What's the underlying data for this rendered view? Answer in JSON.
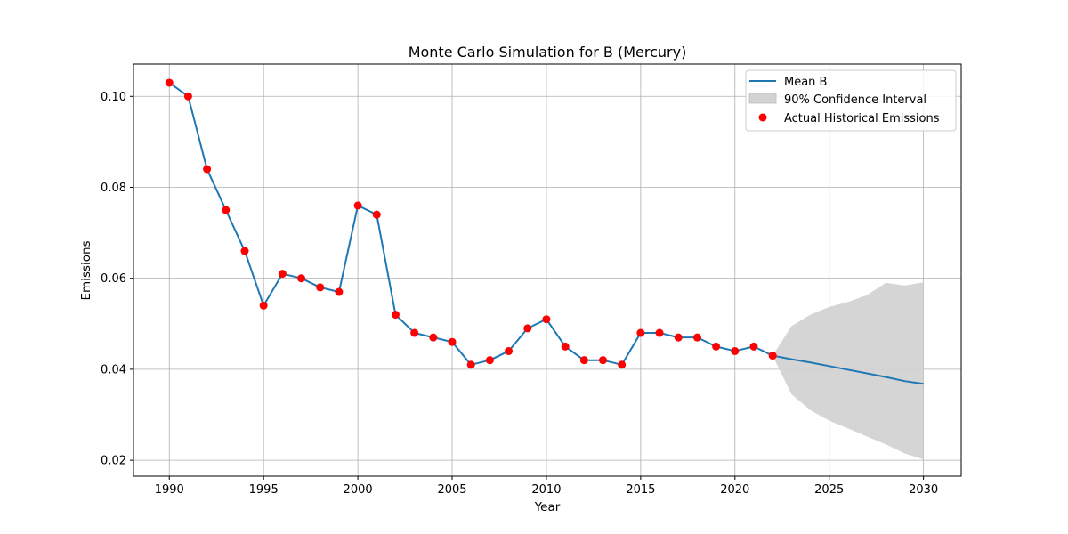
{
  "chart_data": {
    "type": "line",
    "title": "Monte Carlo Simulation for B (Mercury)",
    "xlabel": "Year",
    "ylabel": "Emissions",
    "xlim": [
      1988.1,
      2032.0
    ],
    "ylim": [
      0.0165,
      0.1071
    ],
    "xticks": [
      1990,
      1995,
      2000,
      2005,
      2010,
      2015,
      2020,
      2025,
      2030
    ],
    "yticks": [
      0.02,
      0.04,
      0.06,
      0.08,
      0.1
    ],
    "ytick_labels": [
      "0.02",
      "0.04",
      "0.06",
      "0.08",
      "0.10"
    ],
    "grid": true,
    "legend_position": "top-right",
    "colors": {
      "mean": "#1f77b4",
      "interval": "#d3d3d3",
      "actual": "#ff0000"
    },
    "series": [
      {
        "name": "Mean B",
        "kind": "line",
        "x": [
          1990,
          1991,
          1992,
          1993,
          1994,
          1995,
          1996,
          1997,
          1998,
          1999,
          2000,
          2001,
          2002,
          2003,
          2004,
          2005,
          2006,
          2007,
          2008,
          2009,
          2010,
          2011,
          2012,
          2013,
          2014,
          2015,
          2016,
          2017,
          2018,
          2019,
          2020,
          2021,
          2022,
          2023,
          2024,
          2025,
          2026,
          2027,
          2028,
          2029,
          2030
        ],
        "y": [
          0.103,
          0.1,
          0.084,
          0.075,
          0.066,
          0.054,
          0.061,
          0.06,
          0.058,
          0.057,
          0.076,
          0.074,
          0.052,
          0.048,
          0.047,
          0.046,
          0.041,
          0.042,
          0.044,
          0.049,
          0.051,
          0.045,
          0.042,
          0.042,
          0.041,
          0.048,
          0.048,
          0.047,
          0.047,
          0.045,
          0.044,
          0.045,
          0.043,
          0.0422,
          0.0415,
          0.0407,
          0.0399,
          0.0391,
          0.0383,
          0.0374,
          0.0368
        ]
      },
      {
        "name": "90% Confidence Interval",
        "kind": "band",
        "x": [
          2022,
          2023,
          2024,
          2025,
          2026,
          2027,
          2028,
          2029,
          2030
        ],
        "lower": [
          0.043,
          0.0345,
          0.031,
          0.0287,
          0.027,
          0.0252,
          0.0235,
          0.0215,
          0.0202
        ],
        "upper": [
          0.043,
          0.0495,
          0.052,
          0.0537,
          0.0548,
          0.0563,
          0.059,
          0.0584,
          0.0591
        ]
      },
      {
        "name": "Actual Historical Emissions",
        "kind": "scatter",
        "x": [
          1990,
          1991,
          1992,
          1993,
          1994,
          1995,
          1996,
          1997,
          1998,
          1999,
          2000,
          2001,
          2002,
          2003,
          2004,
          2005,
          2006,
          2007,
          2008,
          2009,
          2010,
          2011,
          2012,
          2013,
          2014,
          2015,
          2016,
          2017,
          2018,
          2019,
          2020,
          2021,
          2022
        ],
        "y": [
          0.103,
          0.1,
          0.084,
          0.075,
          0.066,
          0.054,
          0.061,
          0.06,
          0.058,
          0.057,
          0.076,
          0.074,
          0.052,
          0.048,
          0.047,
          0.046,
          0.041,
          0.042,
          0.044,
          0.049,
          0.051,
          0.045,
          0.042,
          0.042,
          0.041,
          0.048,
          0.048,
          0.047,
          0.047,
          0.045,
          0.044,
          0.045,
          0.043
        ]
      }
    ]
  }
}
